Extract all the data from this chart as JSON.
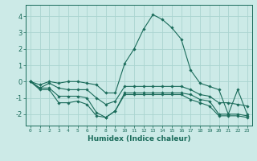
{
  "xlabel": "Humidex (Indice chaleur)",
  "ylabel": "",
  "background_color": "#cceae7",
  "grid_color": "#aad4d0",
  "line_color": "#1a6b5a",
  "x_ticks": [
    0,
    1,
    2,
    3,
    4,
    5,
    6,
    7,
    8,
    9,
    10,
    11,
    12,
    13,
    14,
    15,
    16,
    17,
    18,
    19,
    20,
    21,
    22,
    23
  ],
  "y_ticks": [
    -2,
    -1,
    0,
    1,
    2,
    3,
    4
  ],
  "ylim": [
    -2.7,
    4.7
  ],
  "xlim": [
    -0.5,
    23.5
  ],
  "series": [
    [
      0.0,
      -0.2,
      0.0,
      -0.1,
      0.0,
      0.0,
      -0.1,
      -0.2,
      -0.7,
      -0.7,
      1.1,
      2.0,
      3.2,
      4.1,
      3.8,
      3.3,
      2.6,
      0.7,
      -0.1,
      -0.3,
      -0.5,
      -2.0,
      -0.5,
      -2.0
    ],
    [
      0.0,
      -0.4,
      -0.1,
      -0.4,
      -0.5,
      -0.5,
      -0.5,
      -1.0,
      -1.4,
      -1.2,
      -0.3,
      -0.3,
      -0.3,
      -0.3,
      -0.3,
      -0.3,
      -0.3,
      -0.5,
      -0.8,
      -0.9,
      -1.3,
      -1.3,
      -1.4,
      -1.5
    ],
    [
      0.0,
      -0.4,
      -0.4,
      -0.9,
      -0.9,
      -0.9,
      -1.0,
      -1.9,
      -2.2,
      -1.8,
      -0.7,
      -0.7,
      -0.7,
      -0.7,
      -0.7,
      -0.7,
      -0.7,
      -0.8,
      -1.1,
      -1.2,
      -2.0,
      -2.0,
      -2.0,
      -2.1
    ],
    [
      0.0,
      -0.5,
      -0.5,
      -1.3,
      -1.3,
      -1.2,
      -1.4,
      -2.1,
      -2.2,
      -1.8,
      -0.8,
      -0.8,
      -0.8,
      -0.8,
      -0.8,
      -0.8,
      -0.8,
      -1.1,
      -1.3,
      -1.5,
      -2.1,
      -2.1,
      -2.1,
      -2.2
    ]
  ]
}
